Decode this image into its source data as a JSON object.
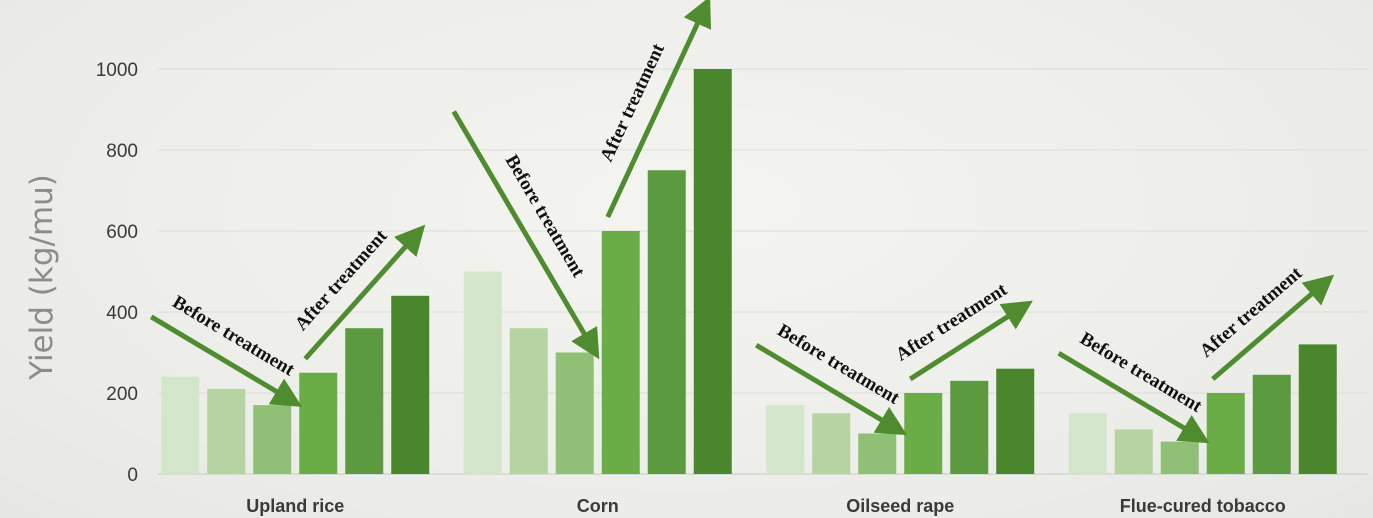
{
  "chart_data": {
    "type": "bar",
    "title": "",
    "ylabel": "Yield (kg/mu)",
    "xlabel": "",
    "ylim": [
      0,
      1000
    ],
    "yticks": [
      0,
      200,
      400,
      600,
      800,
      1000
    ],
    "grid": true,
    "legend": "none",
    "categories": [
      "Upland rice",
      "Corn",
      "Oilseed rape",
      "Flue-cured tobacco"
    ],
    "series": [
      {
        "values": [
          240,
          500,
          170,
          150
        ]
      },
      {
        "values": [
          210,
          360,
          150,
          110
        ]
      },
      {
        "values": [
          170,
          300,
          100,
          80
        ]
      },
      {
        "values": [
          250,
          600,
          200,
          200
        ]
      },
      {
        "values": [
          360,
          750,
          230,
          245
        ]
      },
      {
        "values": [
          440,
          1000,
          260,
          320
        ]
      }
    ],
    "series_colors": [
      "#d4e6c9",
      "#b5d4a2",
      "#8fc075",
      "#6aad46",
      "#5b9a3e",
      "#4a872c"
    ],
    "annotations": {
      "before": "Before treatment",
      "after": "After treatment"
    },
    "arrow_color": "#4e8c2f"
  }
}
